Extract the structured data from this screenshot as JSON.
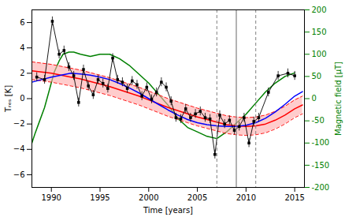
{
  "chart_data": {
    "type": "line",
    "xlabel": "Time [years]",
    "ylabel": "Tᵣₑₛ [K]",
    "y2label": "Magnetic field [μT]",
    "xlim": [
      1988,
      2016
    ],
    "xticks": [
      1990,
      1995,
      2000,
      2005,
      2010,
      2015
    ],
    "ylim": [
      -7,
      7
    ],
    "yticks": [
      -6,
      -4,
      -2,
      0,
      2,
      4,
      6
    ],
    "y2lim": [
      -200,
      200
    ],
    "y2ticks": [
      -200,
      -150,
      -100,
      -50,
      0,
      50,
      100,
      150,
      200
    ],
    "series": [
      {
        "type": "line",
        "axis": "y2",
        "color": "green",
        "line_style": "solid",
        "x": [
          1988.0,
          1988.3,
          1988.8,
          1989.3,
          1989.8,
          1990.3,
          1990.8,
          1991.2,
          1991.8,
          1992.3,
          1993.0,
          1994.0,
          1995.0,
          1996.0,
          1997.0,
          1998.0,
          1999.0,
          2000.0,
          2001.0,
          2002.0,
          2003.0,
          2004.0,
          2005.0,
          2006.0,
          2007.0,
          2008.0,
          2009.0,
          2010.0,
          2011.0,
          2012.0,
          2013.0,
          2014.0,
          2015.0
        ],
        "values": [
          -100,
          -80,
          -50,
          -20,
          20,
          60,
          85,
          100,
          105,
          105,
          100,
          95,
          100,
          100,
          90,
          75,
          55,
          35,
          10,
          -15,
          -45,
          -65,
          -75,
          -85,
          -90,
          -75,
          -55,
          -35,
          -10,
          15,
          35,
          50,
          58
        ]
      },
      {
        "type": "band",
        "color": "#ffaaaa",
        "x": [
          1988,
          1989,
          1990,
          1991,
          1992,
          1993,
          1994,
          1995,
          1996,
          1997,
          1998,
          1999,
          2000,
          2001,
          2002,
          2003,
          2004,
          2005,
          2006,
          2007,
          2008,
          2009,
          2010,
          2011,
          2012,
          2013,
          2014,
          2015,
          2015.8
        ],
        "upper": [
          2.9,
          2.8,
          2.7,
          2.55,
          2.4,
          2.25,
          2.05,
          1.85,
          1.65,
          1.4,
          1.15,
          0.9,
          0.6,
          0.3,
          0.0,
          -0.25,
          -0.5,
          -0.75,
          -0.95,
          -1.15,
          -1.35,
          -1.45,
          -1.5,
          -1.45,
          -1.3,
          -1.0,
          -0.6,
          -0.1,
          0.2
        ],
        "lower": [
          1.5,
          1.4,
          1.3,
          1.15,
          1.0,
          0.85,
          0.65,
          0.45,
          0.25,
          0.0,
          -0.25,
          -0.5,
          -0.8,
          -1.1,
          -1.4,
          -1.65,
          -1.9,
          -2.15,
          -2.35,
          -2.55,
          -2.75,
          -2.85,
          -2.9,
          -2.85,
          -2.7,
          -2.4,
          -2.0,
          -1.5,
          -1.2
        ]
      },
      {
        "type": "line",
        "color": "red",
        "line_style": "dashed",
        "x": [
          1988,
          1989,
          1990,
          1991,
          1992,
          1993,
          1994,
          1995,
          1996,
          1997,
          1998,
          1999,
          2000,
          2001,
          2002,
          2003,
          2004,
          2005,
          2006,
          2007,
          2008,
          2009,
          2010,
          2011,
          2012,
          2013,
          2014,
          2015,
          2015.8
        ],
        "values": [
          2.9,
          2.8,
          2.7,
          2.55,
          2.4,
          2.25,
          2.05,
          1.85,
          1.65,
          1.4,
          1.15,
          0.9,
          0.6,
          0.3,
          0.0,
          -0.25,
          -0.5,
          -0.75,
          -0.95,
          -1.15,
          -1.35,
          -1.45,
          -1.5,
          -1.45,
          -1.3,
          -1.0,
          -0.6,
          -0.1,
          0.2
        ]
      },
      {
        "type": "line",
        "color": "red",
        "line_style": "dashed",
        "x": [
          1988,
          1989,
          1990,
          1991,
          1992,
          1993,
          1994,
          1995,
          1996,
          1997,
          1998,
          1999,
          2000,
          2001,
          2002,
          2003,
          2004,
          2005,
          2006,
          2007,
          2008,
          2009,
          2010,
          2011,
          2012,
          2013,
          2014,
          2015,
          2015.8
        ],
        "values": [
          1.5,
          1.4,
          1.3,
          1.15,
          1.0,
          0.85,
          0.65,
          0.45,
          0.25,
          0.0,
          -0.25,
          -0.5,
          -0.8,
          -1.1,
          -1.4,
          -1.65,
          -1.9,
          -2.15,
          -2.35,
          -2.55,
          -2.75,
          -2.85,
          -2.9,
          -2.85,
          -2.7,
          -2.4,
          -2.0,
          -1.5,
          -1.2
        ]
      },
      {
        "type": "line",
        "color": "red",
        "line_style": "solid",
        "x": [
          1988,
          1989,
          1990,
          1991,
          1992,
          1993,
          1994,
          1995,
          1996,
          1997,
          1998,
          1999,
          2000,
          2001,
          2002,
          2003,
          2004,
          2005,
          2006,
          2007,
          2008,
          2009,
          2010,
          2011,
          2012,
          2013,
          2014,
          2015,
          2015.8
        ],
        "values": [
          2.2,
          2.1,
          2.0,
          1.85,
          1.7,
          1.55,
          1.35,
          1.15,
          0.95,
          0.7,
          0.45,
          0.2,
          -0.1,
          -0.4,
          -0.7,
          -0.95,
          -1.2,
          -1.45,
          -1.65,
          -1.85,
          -2.05,
          -2.15,
          -2.2,
          -2.15,
          -2.0,
          -1.7,
          -1.3,
          -0.8,
          -0.5
        ]
      },
      {
        "type": "line",
        "color": "blue",
        "line_style": "solid",
        "x": [
          1988,
          1989,
          1990,
          1991,
          1992,
          1993,
          1994,
          1995,
          1996,
          1997,
          1998,
          1999,
          2000,
          2001,
          2002,
          2003,
          2004,
          2005,
          2006,
          2007,
          2008,
          2009,
          2010,
          2011,
          2012,
          2013,
          2014,
          2015,
          2015.8
        ],
        "values": [
          1.3,
          1.5,
          1.7,
          1.85,
          2.0,
          1.95,
          1.85,
          1.7,
          1.5,
          1.2,
          0.85,
          0.45,
          0.0,
          -0.45,
          -0.9,
          -1.3,
          -1.65,
          -1.9,
          -2.05,
          -2.15,
          -2.2,
          -2.2,
          -2.1,
          -1.9,
          -1.55,
          -1.05,
          -0.45,
          0.2,
          0.55
        ]
      },
      {
        "type": "line",
        "color": "black",
        "line_style": "solid",
        "marker": "square",
        "x": [
          1988.5,
          1989.3,
          1990.1,
          1990.8,
          1991.3,
          1991.8,
          1992.3,
          1992.8,
          1993.3,
          1993.8,
          1994.3,
          1994.8,
          1995.3,
          1995.8,
          1996.3,
          1996.8,
          1997.3,
          1997.8,
          1998.3,
          1998.8,
          1999.3,
          1999.8,
          2000.3,
          2000.8,
          2001.3,
          2001.8,
          2002.3,
          2002.8,
          2003.3,
          2003.8,
          2004.3,
          2004.8,
          2005.3,
          2005.8,
          2006.3,
          2006.8,
          2007.3,
          2007.8,
          2008.3,
          2008.8,
          2009.3,
          2009.8,
          2010.3,
          2010.8,
          2011.3,
          2012.3,
          2013.3,
          2014.3,
          2015.0
        ],
        "values": [
          1.7,
          1.5,
          6.1,
          3.5,
          3.8,
          2.5,
          1.8,
          -0.3,
          2.3,
          1.0,
          0.3,
          1.5,
          1.2,
          0.8,
          3.2,
          1.5,
          1.3,
          0.8,
          1.4,
          1.1,
          0.2,
          0.9,
          -0.05,
          0.5,
          1.3,
          0.9,
          -0.2,
          -1.5,
          -1.6,
          -0.8,
          -1.5,
          -1.2,
          -1.0,
          -1.5,
          -1.6,
          -4.4,
          -1.3,
          -2.0,
          -1.7,
          -2.5,
          -2.2,
          -1.5,
          -3.5,
          -1.8,
          -1.5,
          0.5,
          1.8,
          2.0,
          1.8
        ],
        "error": [
          0.35,
          0.35,
          0.35,
          0.35,
          0.35,
          0.35,
          0.35,
          0.35,
          0.35,
          0.35,
          0.35,
          0.35,
          0.35,
          0.35,
          0.35,
          0.35,
          0.35,
          0.35,
          0.35,
          0.35,
          0.35,
          0.35,
          0.35,
          0.35,
          0.35,
          0.35,
          0.35,
          0.35,
          0.35,
          0.35,
          0.35,
          0.35,
          0.35,
          0.35,
          0.35,
          0.35,
          0.35,
          0.35,
          0.35,
          0.35,
          0.35,
          0.35,
          0.35,
          0.35,
          0.35,
          0.35,
          0.35,
          0.35,
          0.35
        ]
      }
    ],
    "vlines": [
      {
        "x": 2009.0,
        "color": "gray",
        "line_style": "solid"
      },
      {
        "x": 2007.0,
        "color": "gray",
        "line_style": "dashed"
      },
      {
        "x": 2011.0,
        "color": "gray",
        "line_style": "dashed"
      }
    ]
  }
}
